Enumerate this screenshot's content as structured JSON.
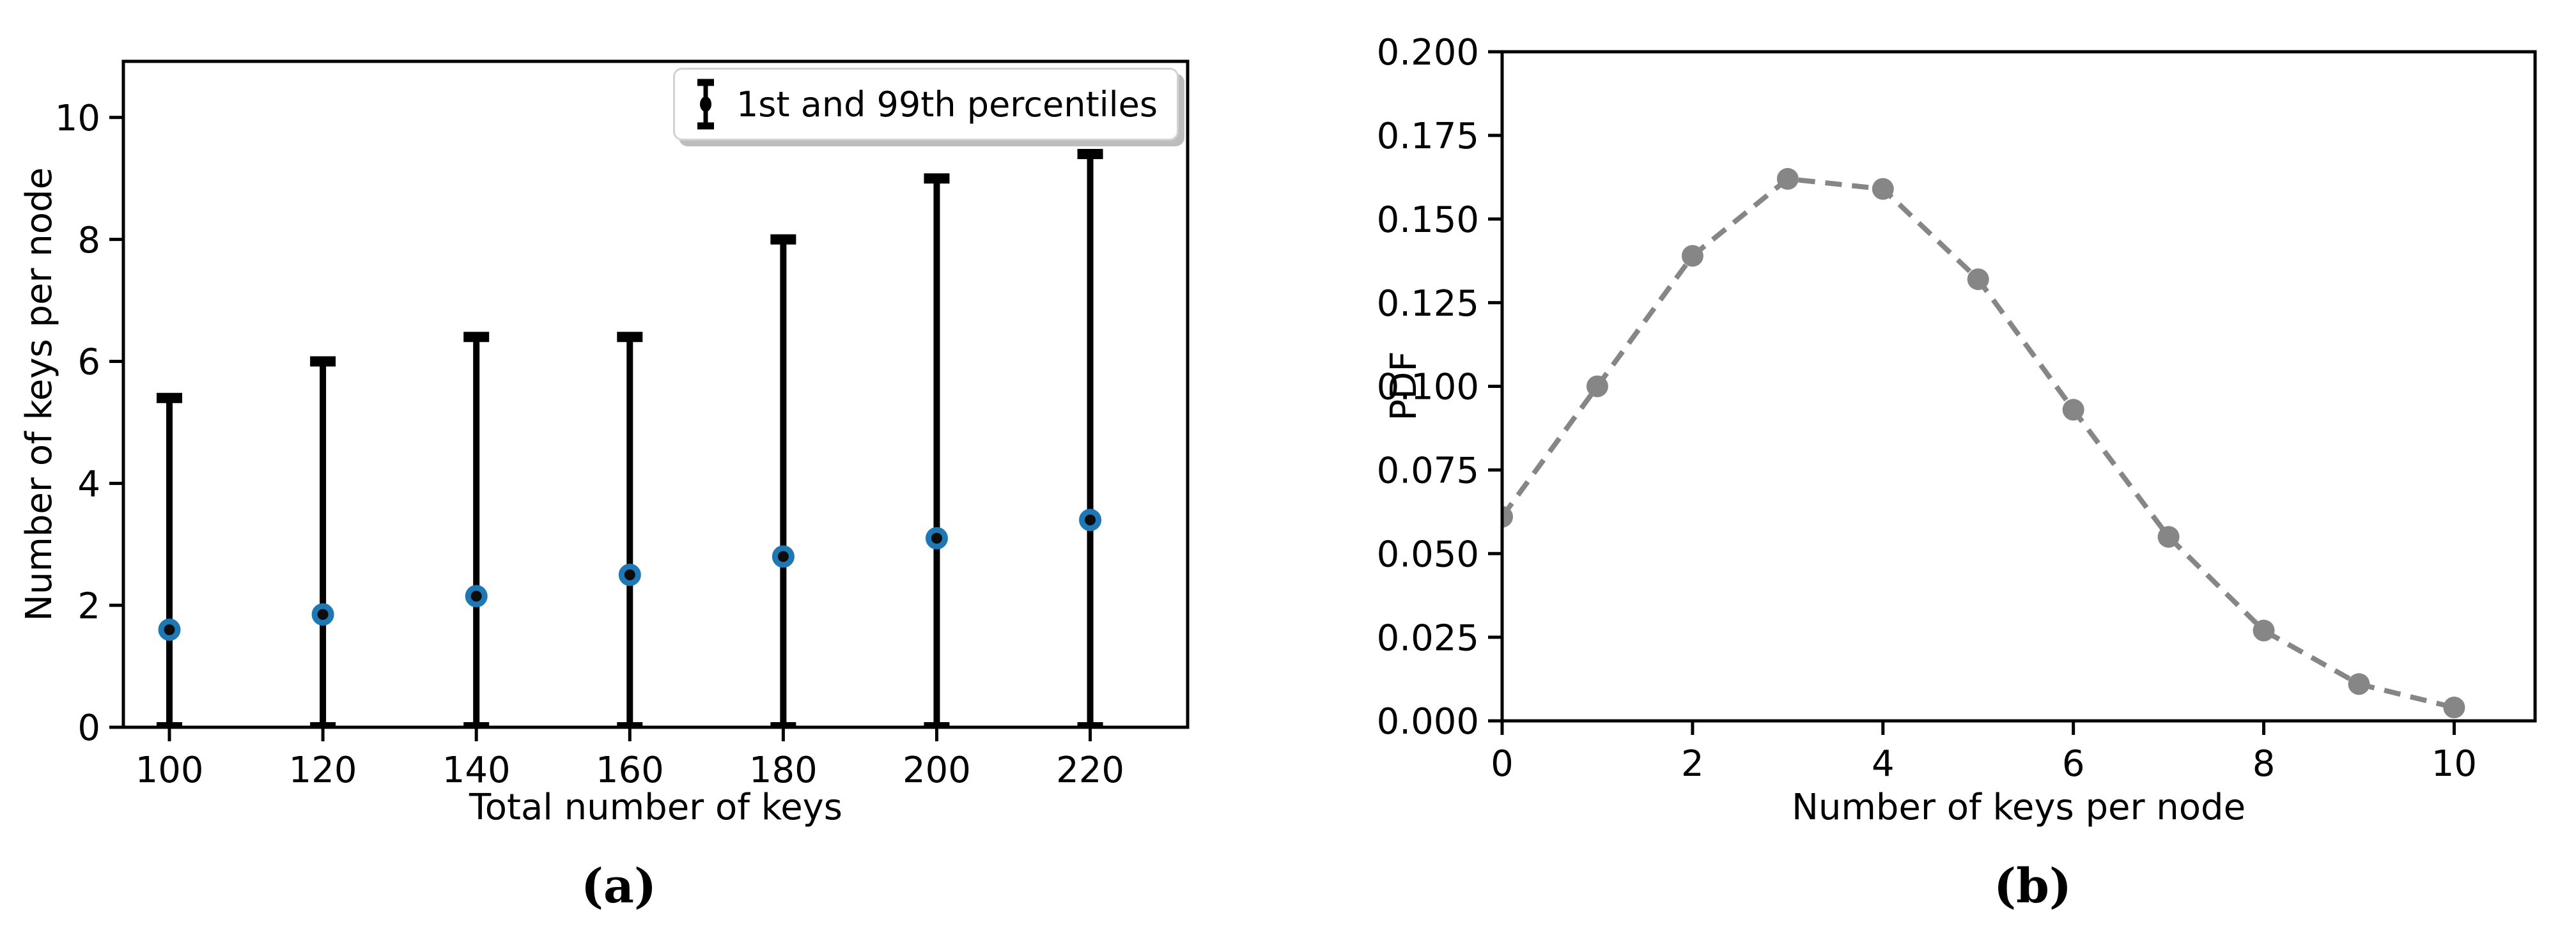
{
  "figure": {
    "background": "#ffffff"
  },
  "chart_data": [
    {
      "id": "a",
      "type": "scatter-errorbar",
      "title": "",
      "caption": "(a)",
      "xlabel": "Total number of keys",
      "ylabel": "Number of keys per node",
      "legend": [
        "1st and 99th percentiles"
      ],
      "legend_position": "upper right",
      "x": [
        100,
        120,
        140,
        160,
        180,
        200,
        220
      ],
      "y": [
        1.6,
        1.85,
        2.15,
        2.5,
        2.8,
        3.1,
        3.4
      ],
      "whisker_low": [
        0,
        0,
        0,
        0,
        0,
        0,
        0
      ],
      "whisker_high": [
        5.4,
        6.0,
        6.4,
        6.4,
        8.0,
        9.0,
        9.4
      ],
      "xticks": [
        100,
        120,
        140,
        160,
        180,
        200,
        220
      ],
      "xtick_labels": [
        "100",
        "120",
        "140",
        "160",
        "180",
        "200",
        "220"
      ],
      "yticks": [
        0,
        2,
        4,
        6,
        8,
        10
      ],
      "ytick_labels": [
        "0",
        "2",
        "4",
        "6",
        "8",
        "10"
      ],
      "xlim": [
        94,
        232.7
      ],
      "ylim": [
        0,
        10.92
      ],
      "grid": false,
      "colors": {
        "errorbar": "#000000",
        "marker_edge": "#1f77b4",
        "marker_face": "#0d0d0d"
      }
    },
    {
      "id": "b",
      "type": "line",
      "title": "",
      "caption": "(b)",
      "xlabel": "Number of keys per node",
      "ylabel": "PDF",
      "legend": [],
      "x": [
        0,
        1,
        2,
        3,
        4,
        5,
        6,
        7,
        8,
        9,
        10
      ],
      "y": [
        0.061,
        0.1,
        0.139,
        0.162,
        0.159,
        0.132,
        0.093,
        0.055,
        0.027,
        0.011,
        0.004
      ],
      "xticks": [
        0,
        2,
        4,
        6,
        8,
        10
      ],
      "xtick_labels": [
        "0",
        "2",
        "4",
        "6",
        "8",
        "10"
      ],
      "yticks": [
        0,
        0.025,
        0.05,
        0.075,
        0.1,
        0.125,
        0.15,
        0.175,
        0.2
      ],
      "ytick_labels": [
        "0.000",
        "0.025",
        "0.050",
        "0.075",
        "0.100",
        "0.125",
        "0.150",
        "0.175",
        "0.200"
      ],
      "xlim": [
        0,
        10.85
      ],
      "ylim": [
        0,
        0.2
      ],
      "grid": false,
      "line_style": "dashed",
      "marker": "circle",
      "colors": {
        "line": "#868686"
      }
    }
  ]
}
